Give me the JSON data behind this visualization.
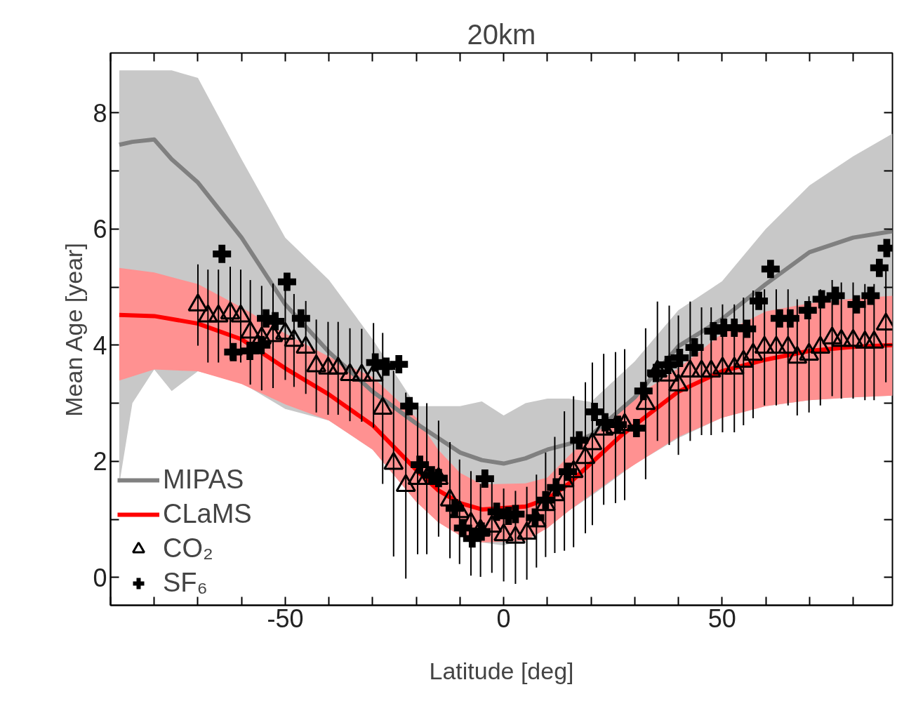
{
  "chart_data": {
    "type": "line",
    "title": "20km",
    "xlabel": "Latitude [deg]",
    "ylabel": "Mean Age [year]",
    "xlim": [
      -90,
      89
    ],
    "ylim": [
      -0.48,
      9.03
    ],
    "xticks": [
      {
        "value": -90,
        "label": null
      },
      {
        "value": -80,
        "label": null
      },
      {
        "value": -70,
        "label": null
      },
      {
        "value": -60,
        "label": null
      },
      -50,
      {
        "value": -40,
        "label": null
      },
      {
        "value": -30,
        "label": null
      },
      {
        "value": -20,
        "label": null
      },
      {
        "value": -10,
        "label": null
      },
      0,
      {
        "value": 10,
        "label": null
      },
      {
        "value": 20,
        "label": null
      },
      {
        "value": 30,
        "label": null
      },
      {
        "value": 40,
        "label": null
      },
      50,
      {
        "value": 60,
        "label": null
      },
      {
        "value": 70,
        "label": null
      },
      {
        "value": 80,
        "label": null
      }
    ],
    "yticks": [
      0,
      {
        "value": 1,
        "label": null
      },
      2,
      {
        "value": 3,
        "label": null
      },
      4,
      {
        "value": 5,
        "label": null
      },
      6,
      {
        "value": 7,
        "label": null
      },
      8
    ],
    "grid": false,
    "legend": "bottom left",
    "series": [
      {
        "name": "MIPAS",
        "color": "#808080",
        "x": [
          -88,
          -85,
          -80,
          -76,
          -70,
          -60,
          -50,
          -40,
          -30,
          -20,
          -10,
          -5,
          0,
          5,
          10,
          15,
          20,
          30,
          40,
          50,
          60,
          70,
          80,
          89
        ],
        "values": [
          7.45,
          7.5,
          7.54,
          7.2,
          6.8,
          5.85,
          4.7,
          3.88,
          3.2,
          2.65,
          2.15,
          2.02,
          1.96,
          2.05,
          2.2,
          2.3,
          2.45,
          3.1,
          3.98,
          4.45,
          5.05,
          5.6,
          5.85,
          5.96
        ],
        "upper": [
          8.73,
          8.73,
          8.73,
          8.73,
          8.6,
          7.2,
          5.85,
          5.12,
          4.1,
          2.95,
          2.95,
          3.03,
          2.79,
          3.0,
          3.08,
          3.08,
          3.02,
          3.72,
          4.6,
          5.1,
          6.0,
          6.75,
          7.25,
          7.64
        ],
        "lower": [
          1.6,
          3.0,
          3.58,
          3.21,
          3.55,
          3.35,
          2.9,
          2.7,
          2.2,
          1.3,
          0.75,
          0.6,
          0.55,
          0.65,
          0.85,
          1.15,
          1.4,
          1.95,
          2.4,
          2.75,
          2.95,
          3.05,
          3.1,
          3.13
        ]
      },
      {
        "name": "CLaMS",
        "color": "#ff0000",
        "x": [
          -88,
          -80,
          -70,
          -60,
          -50,
          -40,
          -30,
          -20,
          -15,
          -10,
          -5,
          5,
          10,
          15,
          27,
          40,
          50,
          60,
          70,
          80,
          89
        ],
        "values": [
          4.52,
          4.5,
          4.37,
          4.1,
          3.6,
          3.15,
          2.62,
          1.85,
          1.5,
          1.28,
          1.17,
          1.22,
          1.35,
          1.62,
          2.45,
          3.2,
          3.55,
          3.75,
          3.9,
          3.97,
          4.0
        ],
        "upper": [
          5.33,
          5.25,
          5.05,
          4.65,
          4.2,
          3.8,
          3.45,
          2.75,
          2.2,
          1.8,
          1.6,
          1.62,
          1.72,
          2.1,
          2.95,
          3.6,
          4.2,
          4.58,
          4.72,
          4.8,
          4.85
        ],
        "lower": [
          3.39,
          3.58,
          3.55,
          3.33,
          2.98,
          2.7,
          2.2,
          1.3,
          0.95,
          0.72,
          0.6,
          0.63,
          0.85,
          1.15,
          1.8,
          2.42,
          2.75,
          2.95,
          3.05,
          3.1,
          3.13
        ]
      },
      {
        "name": "CO₂",
        "type": "scatter",
        "marker": "triangle",
        "color": "#000000",
        "x": [
          -70,
          -67.7,
          -65.3,
          -62.6,
          -60.2,
          -58,
          -55.4,
          -52.8,
          -50,
          -48,
          -45.3,
          -42.9,
          -40.2,
          -37.9,
          -35.2,
          -32.5,
          -29.8,
          -27.7,
          -25.2,
          -22.4,
          -19.7,
          -17.6,
          -14.9,
          -12.3,
          -10.1,
          -7.5,
          -5.3,
          -2.7,
          0,
          2.7,
          5.3,
          7.5,
          9.6,
          11.7,
          13.9,
          16,
          18.7,
          20.3,
          22.9,
          25.6,
          27.7,
          32.5,
          35.2,
          37.9,
          40,
          42.7,
          45.3,
          47.5,
          50.1,
          52.8,
          54.9,
          57.1,
          59.7,
          62.4,
          65.1,
          67.2,
          69.9,
          72.5,
          75.2,
          77.3,
          80,
          82.7,
          84.8,
          87.5
        ],
        "values": [
          4.69,
          4.5,
          4.5,
          4.55,
          4.5,
          4.22,
          4.12,
          4.16,
          4.2,
          4.08,
          3.96,
          3.64,
          3.6,
          3.6,
          3.49,
          3.48,
          3.48,
          2.91,
          1.96,
          1.58,
          1.7,
          1.7,
          1.7,
          1.33,
          1.13,
          0.93,
          0.81,
          0.88,
          0.73,
          0.69,
          0.76,
          0.97,
          1.25,
          1.42,
          1.66,
          1.82,
          2.06,
          2.3,
          2.55,
          2.58,
          2.63,
          2.99,
          3.55,
          3.48,
          3.31,
          3.55,
          3.55,
          3.55,
          3.6,
          3.6,
          3.72,
          3.84,
          3.96,
          3.96,
          3.96,
          3.79,
          3.84,
          3.96,
          4.12,
          4.08,
          4.08,
          4.05,
          4.05,
          4.36
        ],
        "errors": [
          0.7,
          0.8,
          0.8,
          0.8,
          0.8,
          0.9,
          0.9,
          0.9,
          0.8,
          0.8,
          0.8,
          0.8,
          0.8,
          0.8,
          0.8,
          0.8,
          0.9,
          1.3,
          1.6,
          1.6,
          1.3,
          1.3,
          1.0,
          1.0,
          0.9,
          0.9,
          0.8,
          0.8,
          0.8,
          0.8,
          0.8,
          0.8,
          0.9,
          1.0,
          1.2,
          1.3,
          1.3,
          1.4,
          1.3,
          1.3,
          1.3,
          1.3,
          1.2,
          1.2,
          1.2,
          1.2,
          1.1,
          1.1,
          1.1,
          1.1,
          1.1,
          1.1,
          1.0,
          1.0,
          1.0,
          1.0,
          1.0,
          1.0,
          1.0,
          1.0,
          1.0,
          1.0,
          1.0,
          1.0
        ]
      },
      {
        "name": "SF₆",
        "type": "scatter",
        "marker": "cross",
        "color": "#000000",
        "x": [
          -64.5,
          -61.9,
          -58.1,
          -55.5,
          -54.4,
          -52.3,
          -49.6,
          -46.4,
          -29.4,
          -26.9,
          -24,
          -21.6,
          -19.2,
          -16.5,
          -14.9,
          -11.2,
          -9.3,
          -7.2,
          -5.1,
          -4.3,
          -1.6,
          1.1,
          2.7,
          7.2,
          9.6,
          12,
          14.7,
          17.3,
          20.8,
          23.2,
          26.1,
          30.4,
          32,
          34.9,
          37.6,
          40.3,
          43.7,
          48,
          50.4,
          52.8,
          55.7,
          58.4,
          61.1,
          63.2,
          65.6,
          69.6,
          72.8,
          76,
          80.8,
          84,
          86,
          87.7
        ],
        "values": [
          5.57,
          3.88,
          3.9,
          4.0,
          4.46,
          4.41,
          5.09,
          4.46,
          3.7,
          3.63,
          3.67,
          2.95,
          1.94,
          1.76,
          1.71,
          1.19,
          0.85,
          0.67,
          0.79,
          1.7,
          1.13,
          1.06,
          1.09,
          1.03,
          1.33,
          1.55,
          1.82,
          2.36,
          2.85,
          2.67,
          2.63,
          2.57,
          3.21,
          3.52,
          3.66,
          3.78,
          3.96,
          4.24,
          4.3,
          4.3,
          4.28,
          4.76,
          5.31,
          4.46,
          4.46,
          4.6,
          4.79,
          4.85,
          4.7,
          4.85,
          5.33,
          5.67
        ]
      }
    ]
  }
}
